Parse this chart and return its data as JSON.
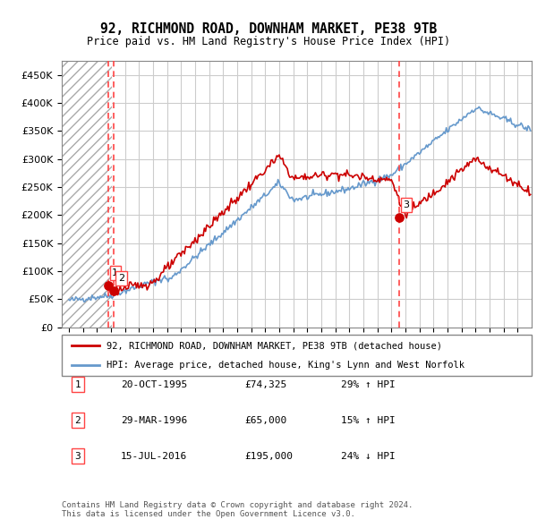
{
  "title": "92, RICHMOND ROAD, DOWNHAM MARKET, PE38 9TB",
  "subtitle": "Price paid vs. HM Land Registry's House Price Index (HPI)",
  "legend_line1": "92, RICHMOND ROAD, DOWNHAM MARKET, PE38 9TB (detached house)",
  "legend_line2": "HPI: Average price, detached house, King's Lynn and West Norfolk",
  "footer1": "Contains HM Land Registry data © Crown copyright and database right 2024.",
  "footer2": "This data is licensed under the Open Government Licence v3.0.",
  "table": [
    {
      "num": "1",
      "date": "20-OCT-1995",
      "price": "£74,325",
      "change": "29% ↑ HPI"
    },
    {
      "num": "2",
      "date": "29-MAR-1996",
      "price": "£65,000",
      "change": "15% ↑ HPI"
    },
    {
      "num": "3",
      "date": "15-JUL-2016",
      "price": "£195,000",
      "change": "24% ↓ HPI"
    }
  ],
  "sale_prices": [
    74325,
    65000,
    195000
  ],
  "sale_labels": [
    "1",
    "2",
    "3"
  ],
  "hpi_color": "#6699cc",
  "price_color": "#cc0000",
  "grid_color": "#cccccc",
  "dashed_line_color": "#ff4444",
  "background_color": "#ffffff",
  "ylim": [
    0,
    475000
  ],
  "yticks": [
    0,
    50000,
    100000,
    150000,
    200000,
    250000,
    300000,
    350000,
    400000,
    450000
  ],
  "xlim_start": 1992.5,
  "xlim_end": 2026.0
}
